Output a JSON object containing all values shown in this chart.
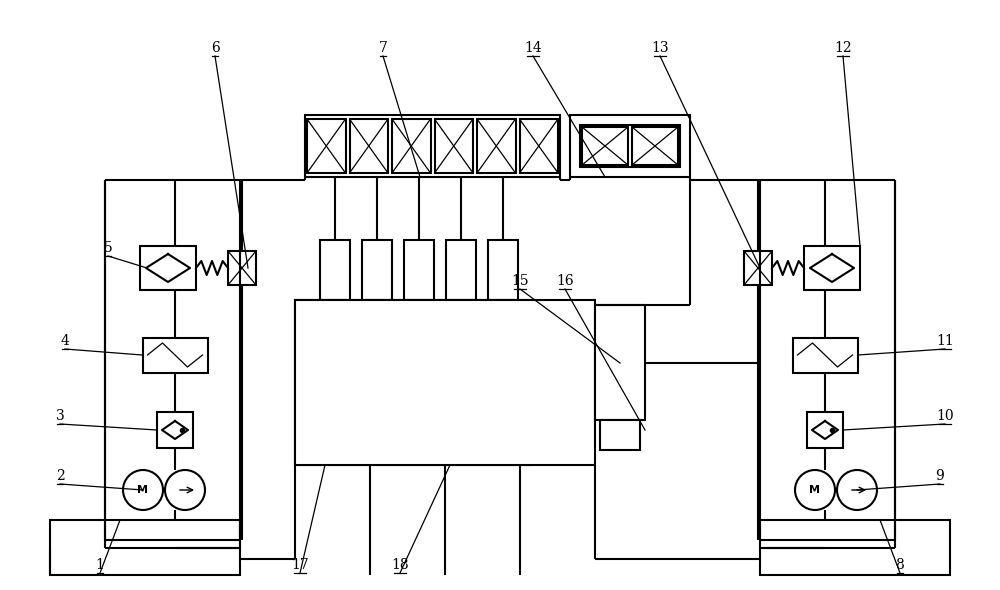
{
  "bg_color": "#ffffff",
  "line_color": "#000000",
  "lw": 1.5,
  "lw_thin": 0.9
}
